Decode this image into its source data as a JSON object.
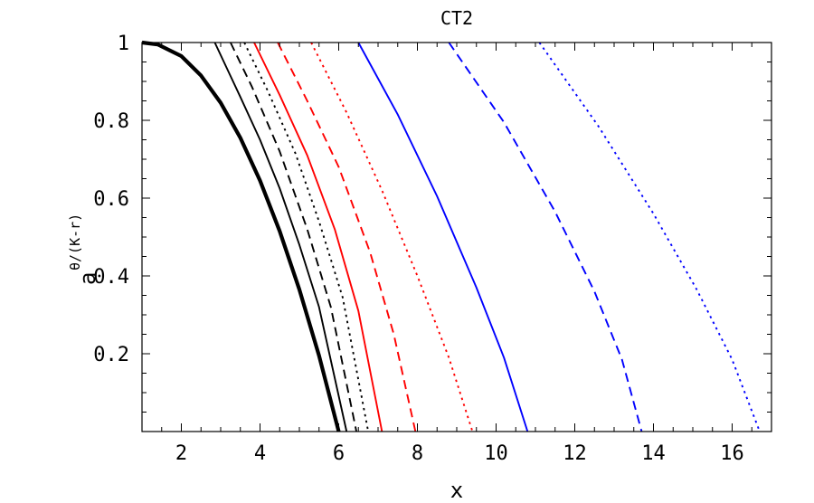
{
  "chart_data": {
    "type": "line",
    "title": "CT2",
    "xlabel": "x",
    "ylabel": {
      "base": "a",
      "exponent": "θ/(K-r)"
    },
    "xlim": [
      1,
      17
    ],
    "ylim": [
      0,
      1
    ],
    "x_ticks": [
      2,
      4,
      6,
      8,
      10,
      12,
      14,
      16
    ],
    "y_ticks": [
      0.2,
      0.4,
      0.6,
      0.8,
      1
    ],
    "x_tick_labels": [
      "2",
      "4",
      "6",
      "8",
      "10",
      "12",
      "14",
      "16"
    ],
    "y_tick_labels": [
      "0.2",
      "0.4",
      "0.6",
      "0.8",
      "1"
    ],
    "grid": false,
    "series": [
      {
        "color": "#000000",
        "style": "solid",
        "width": "thick",
        "x": [
          1.0,
          1.4,
          2.0,
          2.5,
          3.0,
          3.5,
          4.0,
          4.5,
          5.0,
          5.5,
          6.0
        ],
        "y": [
          1.0,
          0.995,
          0.965,
          0.915,
          0.845,
          0.755,
          0.645,
          0.515,
          0.365,
          0.195,
          0.0
        ]
      },
      {
        "color": "#000000",
        "style": "solid",
        "width": "thin",
        "x": [
          2.85,
          3.5,
          4.0,
          4.5,
          5.0,
          5.5,
          6.2
        ],
        "y": [
          1.0,
          0.86,
          0.75,
          0.625,
          0.48,
          0.32,
          0.0
        ]
      },
      {
        "color": "#000000",
        "style": "dashed",
        "width": "thin",
        "x": [
          3.25,
          3.8,
          4.5,
          5.2,
          5.8,
          6.45
        ],
        "y": [
          1.0,
          0.885,
          0.72,
          0.52,
          0.32,
          0.0
        ]
      },
      {
        "color": "#000000",
        "style": "dotted",
        "width": "thin",
        "x": [
          3.6,
          4.2,
          4.9,
          5.5,
          6.1,
          6.75
        ],
        "y": [
          1.0,
          0.875,
          0.715,
          0.54,
          0.345,
          0.0
        ]
      },
      {
        "color": "#ff0000",
        "style": "solid",
        "width": "thin",
        "x": [
          3.85,
          4.5,
          5.2,
          5.9,
          6.5,
          7.1
        ],
        "y": [
          1.0,
          0.865,
          0.71,
          0.52,
          0.31,
          0.0
        ]
      },
      {
        "color": "#ff0000",
        "style": "dashed",
        "width": "thin",
        "x": [
          4.45,
          5.2,
          6.0,
          6.8,
          7.4,
          7.95
        ],
        "y": [
          1.0,
          0.85,
          0.68,
          0.46,
          0.25,
          0.0
        ]
      },
      {
        "color": "#ff0000",
        "style": "dotted",
        "width": "thin",
        "x": [
          5.3,
          6.2,
          7.1,
          8.0,
          8.8,
          9.4
        ],
        "y": [
          1.0,
          0.82,
          0.62,
          0.4,
          0.19,
          0.0
        ]
      },
      {
        "color": "#0000ff",
        "style": "solid",
        "width": "thin",
        "x": [
          6.5,
          7.5,
          8.5,
          9.5,
          10.2,
          10.8
        ],
        "y": [
          1.0,
          0.815,
          0.605,
          0.37,
          0.19,
          0.0
        ]
      },
      {
        "color": "#0000ff",
        "style": "dashed",
        "width": "thin",
        "x": [
          8.8,
          10.2,
          11.5,
          12.5,
          13.2,
          13.7
        ],
        "y": [
          1.0,
          0.795,
          0.565,
          0.36,
          0.185,
          0.0
        ]
      },
      {
        "color": "#0000ff",
        "style": "dotted",
        "width": "thin",
        "x": [
          11.1,
          12.6,
          14.0,
          15.1,
          16.0,
          16.7
        ],
        "y": [
          1.0,
          0.785,
          0.56,
          0.365,
          0.185,
          0.0
        ]
      }
    ]
  }
}
